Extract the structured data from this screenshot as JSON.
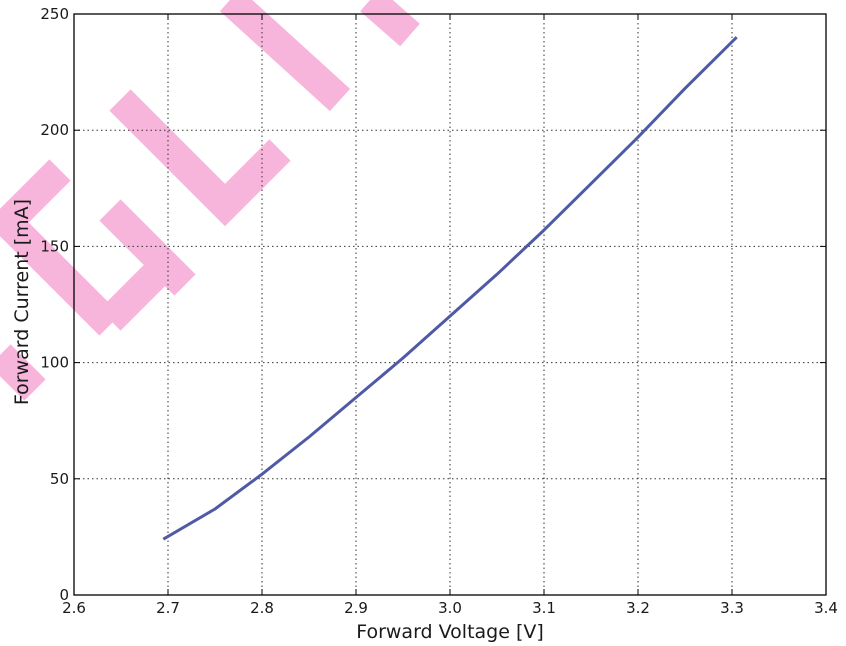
{
  "chart_data": {
    "type": "line",
    "xlabel": "Forward Voltage [V]",
    "ylabel": "Forward Current [mA]",
    "xlim": [
      2.6,
      3.4
    ],
    "ylim": [
      0,
      250
    ],
    "xticks": [
      "2.6",
      "2.7",
      "2.8",
      "2.9",
      "3.0",
      "3.1",
      "3.2",
      "3.3",
      "3.4"
    ],
    "yticks": [
      "0",
      "50",
      "100",
      "150",
      "200",
      "250"
    ],
    "grid": true,
    "series": [
      {
        "color": "#4f5aa6",
        "x": [
          2.695,
          2.75,
          2.8,
          2.85,
          2.9,
          2.95,
          3.0,
          3.05,
          3.1,
          3.15,
          3.2,
          3.25,
          3.305
        ],
        "y": [
          24,
          37,
          52,
          68,
          85,
          102,
          120,
          138,
          157,
          177,
          197,
          218,
          240
        ]
      }
    ]
  },
  "watermark": {
    "color": "#f7a8d6",
    "letters": "ELIT"
  }
}
